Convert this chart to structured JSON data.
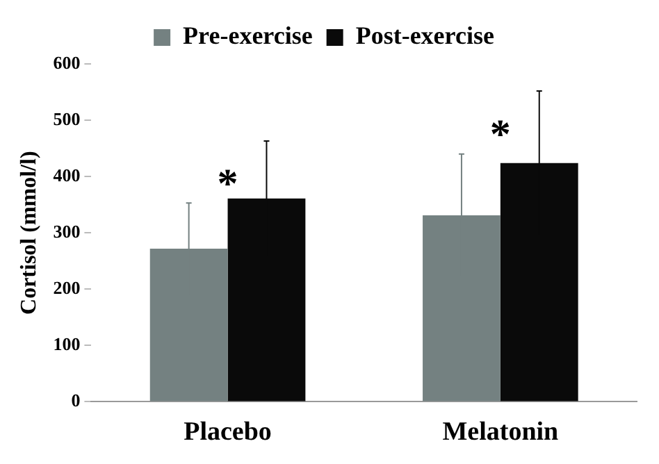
{
  "chart_data": {
    "type": "bar",
    "ylabel": "Cortisol (mmol/l)",
    "categories": [
      "Placebo",
      "Melatonin"
    ],
    "series": [
      {
        "name": "Pre-exercise",
        "color": "#748181",
        "values": [
          272,
          331
        ],
        "errors": [
          81,
          109
        ]
      },
      {
        "name": "Post-exercise",
        "color": "#0a0a0a",
        "values": [
          361,
          424
        ],
        "errors": [
          102,
          128
        ]
      }
    ],
    "ylim": [
      0,
      600
    ],
    "yticks": [
      0,
      100,
      200,
      300,
      400,
      500,
      600
    ],
    "grid": false,
    "legend": "top",
    "annotations": [
      "*",
      "*"
    ]
  }
}
